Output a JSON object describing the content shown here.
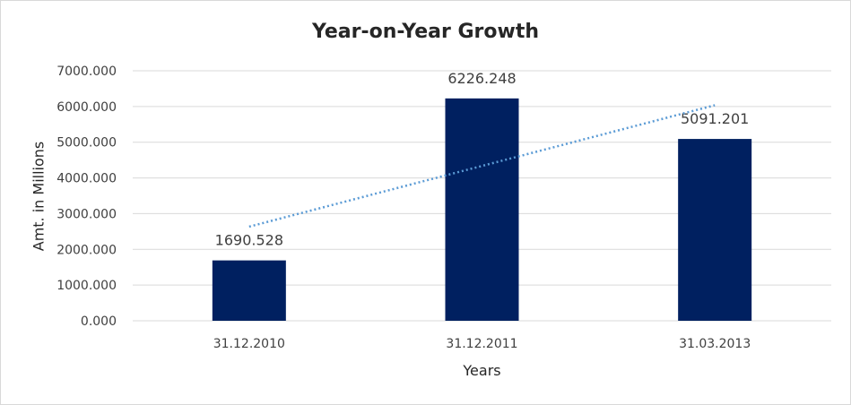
{
  "chart_data": {
    "type": "bar",
    "title": "Year-on-Year Growth",
    "xlabel": "Years",
    "ylabel": "Amt. in Millions",
    "categories": [
      "31.12.2010",
      "31.12.2011",
      "31.03.2013"
    ],
    "values": [
      1690.528,
      6226.248,
      5091.201
    ],
    "value_labels": [
      "1690.528",
      "6226.248",
      "5091.201"
    ],
    "ylim": [
      0,
      7000
    ],
    "yticks": [
      "0.000",
      "1000.000",
      "2000.000",
      "3000.000",
      "4000.000",
      "5000.000",
      "6000.000",
      "7000.000"
    ],
    "grid": true,
    "trendline": {
      "type": "linear",
      "style": "dotted"
    },
    "colors": {
      "bar": "#002060",
      "trendline": "#5b9bd5",
      "grid": "#d9d9d9"
    }
  }
}
